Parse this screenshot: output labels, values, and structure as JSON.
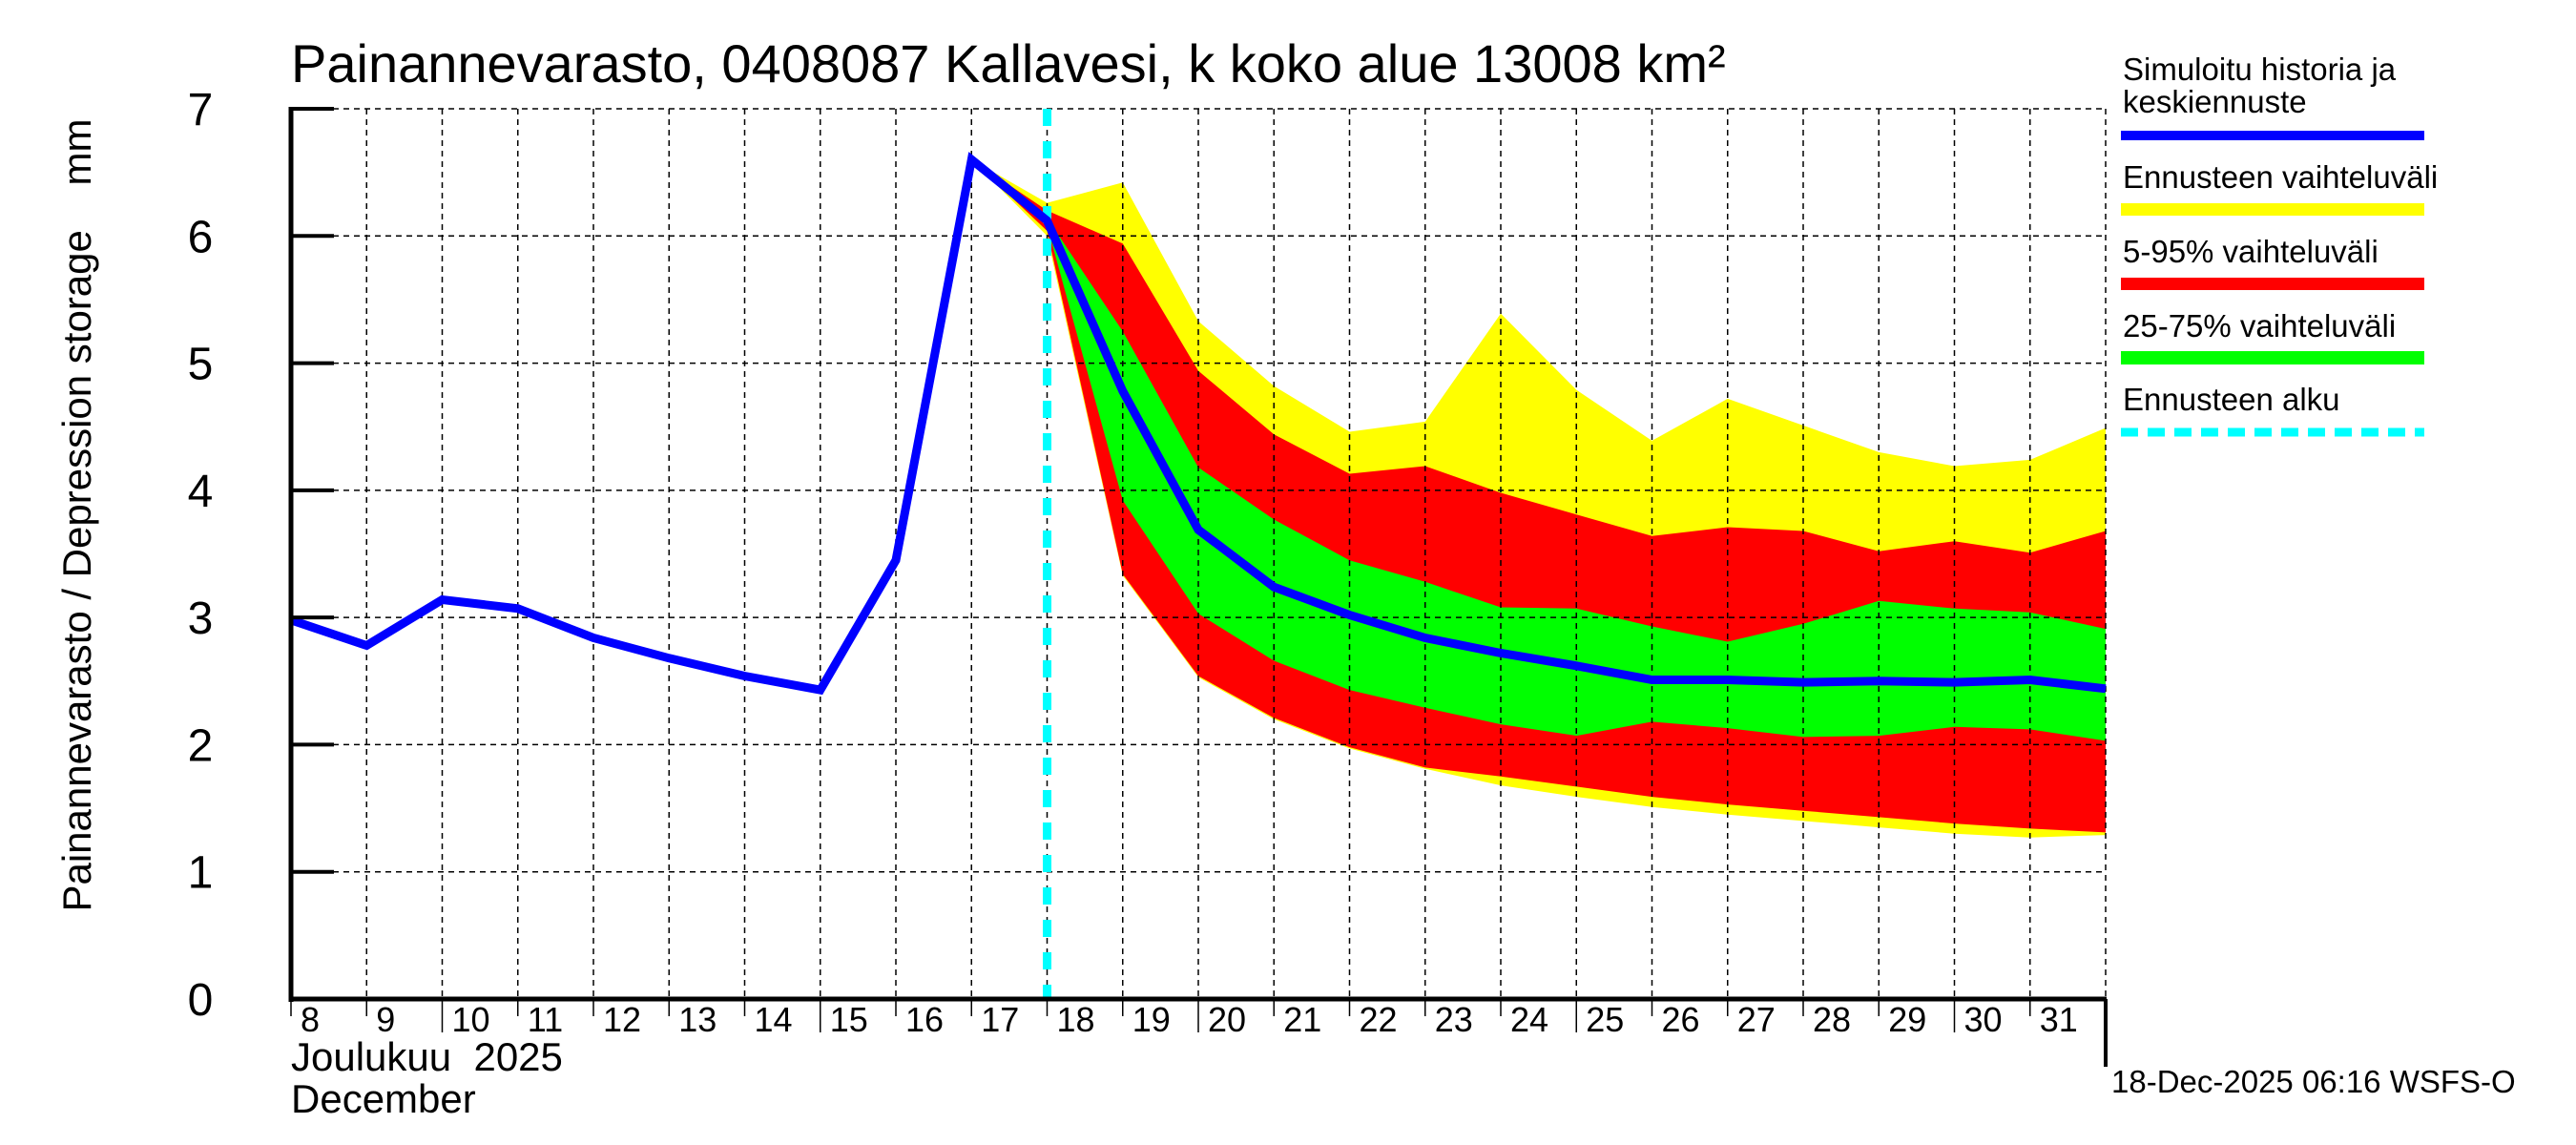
{
  "chart_data": {
    "type": "area",
    "title": "Painannevarasto, 0408087 Kallavesi, k koko alue 13008 km²",
    "ylabel": "Painannevarasto / Depression storage    mm",
    "xlabel_lines": [
      "Joulukuu  2025",
      "December"
    ],
    "ylim": [
      0,
      7
    ],
    "yticks": [
      0,
      1,
      2,
      3,
      4,
      5,
      6,
      7
    ],
    "ytick_labels": [
      "0",
      "1",
      "2",
      "3",
      "4",
      "5",
      "6",
      "7"
    ],
    "x_start_day": 8,
    "x_end_day": 32,
    "xtick_days": [
      8,
      9,
      10,
      11,
      12,
      13,
      14,
      15,
      16,
      17,
      18,
      19,
      20,
      21,
      22,
      23,
      24,
      25,
      26,
      27,
      28,
      29,
      30,
      31
    ],
    "xtick_labels": [
      "8",
      "9",
      "10",
      "11",
      "12",
      "13",
      "14",
      "15",
      "16",
      "17",
      "18",
      "19",
      "20",
      "21",
      "22",
      "23",
      "24",
      "25",
      "26",
      "27",
      "28",
      "29",
      "30",
      "31"
    ],
    "grid": true,
    "forecast_start_day": 18,
    "series": [
      {
        "name": "Simuloitu historia ja keskiennuste",
        "kind": "line",
        "color": "#0000ff",
        "x": [
          8,
          9,
          10,
          11,
          12,
          13,
          14,
          15,
          16,
          17,
          18,
          19,
          20,
          21,
          22,
          23,
          24,
          25,
          26,
          27,
          28,
          29,
          30,
          31,
          32
        ],
        "values": [
          2.98,
          2.78,
          3.14,
          3.07,
          2.84,
          2.68,
          2.54,
          2.43,
          3.45,
          6.6,
          6.12,
          4.78,
          3.69,
          3.24,
          3.02,
          2.84,
          2.72,
          2.62,
          2.51,
          2.51,
          2.49,
          2.5,
          2.49,
          2.51,
          2.44
        ]
      },
      {
        "name": "Ennusteen vaihteluväli",
        "kind": "band",
        "color": "#ffff00",
        "x": [
          17,
          18,
          19,
          20,
          21,
          22,
          23,
          24,
          25,
          26,
          27,
          28,
          29,
          30,
          31,
          32
        ],
        "upper": [
          6.6,
          6.26,
          6.42,
          5.33,
          4.82,
          4.46,
          4.54,
          5.39,
          4.79,
          4.39,
          4.72,
          4.51,
          4.3,
          4.19,
          4.24,
          4.49
        ],
        "lower": [
          6.6,
          6.0,
          3.33,
          2.53,
          2.2,
          1.97,
          1.81,
          1.68,
          1.59,
          1.51,
          1.45,
          1.4,
          1.35,
          1.3,
          1.27,
          1.29
        ]
      },
      {
        "name": "5-95% vaihteluväli",
        "kind": "band",
        "color": "#ff0000",
        "x": [
          17,
          18,
          19,
          20,
          21,
          22,
          23,
          24,
          25,
          26,
          27,
          28,
          29,
          30,
          31,
          32
        ],
        "upper": [
          6.6,
          6.2,
          5.94,
          4.94,
          4.44,
          4.13,
          4.19,
          3.98,
          3.81,
          3.64,
          3.71,
          3.68,
          3.52,
          3.6,
          3.51,
          3.68
        ],
        "lower": [
          6.6,
          6.04,
          3.34,
          2.54,
          2.21,
          1.98,
          1.82,
          1.75,
          1.67,
          1.59,
          1.53,
          1.48,
          1.43,
          1.38,
          1.34,
          1.31
        ]
      },
      {
        "name": "25-75% vaihteluväli",
        "kind": "band",
        "color": "#00ff00",
        "x": [
          17,
          18,
          19,
          20,
          21,
          22,
          23,
          24,
          25,
          26,
          27,
          28,
          29,
          30,
          31,
          32
        ],
        "upper": [
          6.6,
          6.14,
          5.25,
          4.18,
          3.77,
          3.45,
          3.28,
          3.08,
          3.07,
          2.93,
          2.81,
          2.95,
          3.13,
          3.07,
          3.04,
          2.91
        ],
        "lower": [
          6.6,
          6.08,
          3.92,
          3.03,
          2.66,
          2.43,
          2.29,
          2.16,
          2.07,
          2.18,
          2.13,
          2.06,
          2.07,
          2.14,
          2.12,
          2.03
        ]
      }
    ],
    "legend": {
      "placement": "right",
      "items": [
        {
          "label": "Simuloitu historia ja",
          "label2": "keskiennuste",
          "color": "#0000ff",
          "style": "solid"
        },
        {
          "label": "Ennusteen vaihteluväli",
          "color": "#ffff00",
          "style": "solid"
        },
        {
          "label": "5-95% vaihteluväli",
          "color": "#ff0000",
          "style": "solid"
        },
        {
          "label": "25-75% vaihteluväli",
          "color": "#00ff00",
          "style": "solid"
        },
        {
          "label": "Ennusteen alku",
          "color": "#00ffff",
          "style": "dashed"
        }
      ]
    },
    "timestamp": "18-Dec-2025 06:16 WSFS-O"
  }
}
